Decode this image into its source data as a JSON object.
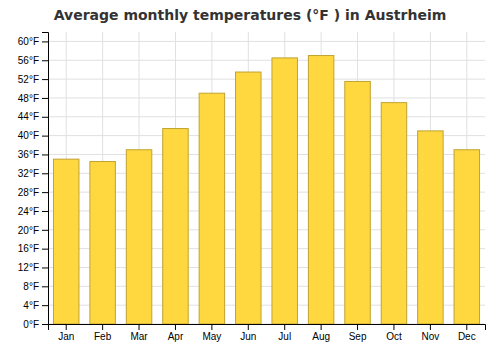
{
  "chart_data": {
    "type": "bar",
    "title": "Average monthly temperatures (°F ) in Austrheim",
    "categories": [
      "Jan",
      "Feb",
      "Mar",
      "Apr",
      "May",
      "Jun",
      "Jul",
      "Aug",
      "Sep",
      "Oct",
      "Nov",
      "Dec"
    ],
    "values": [
      35.0,
      34.5,
      37.0,
      41.5,
      49.0,
      53.5,
      56.5,
      57.0,
      51.5,
      47.0,
      41.0,
      37.0
    ],
    "color": "#FFD840",
    "ylim": [
      0,
      62
    ],
    "yticks": [
      {
        "value": 0,
        "label": "0°F"
      },
      {
        "value": 4,
        "label": "4°F"
      },
      {
        "value": 8,
        "label": "8°F"
      },
      {
        "value": 12,
        "label": "12°F"
      },
      {
        "value": 16,
        "label": "16°F"
      },
      {
        "value": 20,
        "label": "20°F"
      },
      {
        "value": 24,
        "label": "24°F"
      },
      {
        "value": 28,
        "label": "28°F"
      },
      {
        "value": 32,
        "label": "32°F"
      },
      {
        "value": 36,
        "label": "36°F"
      },
      {
        "value": 40,
        "label": "40°F"
      },
      {
        "value": 44,
        "label": "44°F"
      },
      {
        "value": 48,
        "label": "48°F"
      },
      {
        "value": 52,
        "label": "52°F"
      },
      {
        "value": 56,
        "label": "56°F"
      },
      {
        "value": 60,
        "label": "60°F"
      }
    ],
    "grid": true
  }
}
